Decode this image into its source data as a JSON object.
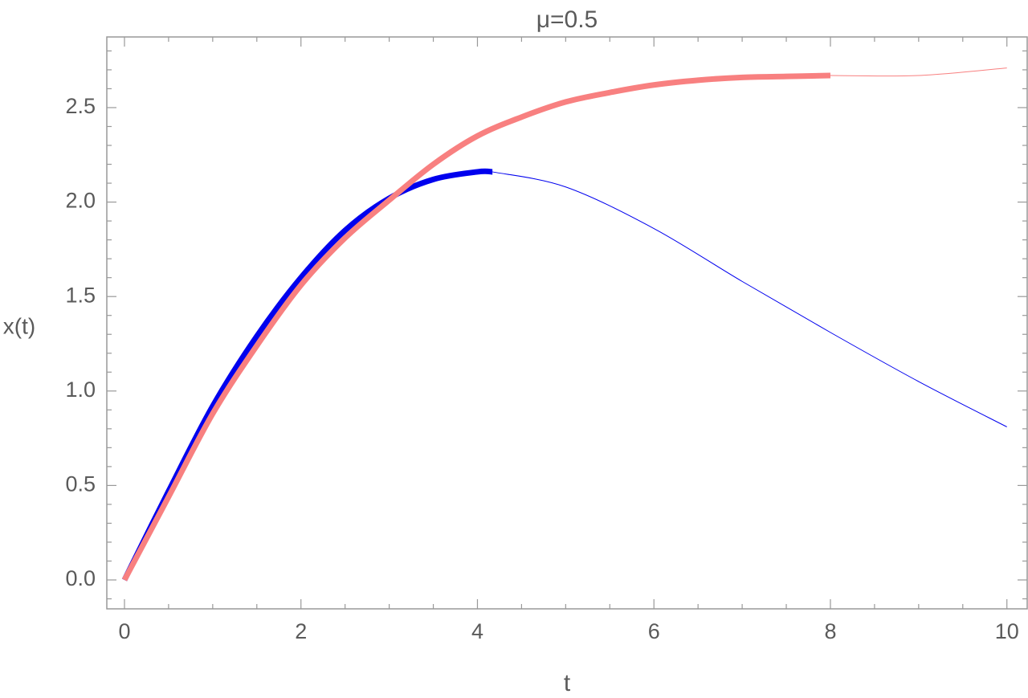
{
  "chart_data": {
    "type": "line",
    "title": "μ=0.5",
    "x_label": "t",
    "y_label": "x(t)",
    "xlim": [
      -0.2,
      10.23
    ],
    "ylim": [
      -0.153,
      2.874
    ],
    "xticks": [
      0,
      2,
      4,
      6,
      8,
      10
    ],
    "yticks": [
      {
        "value": 0,
        "label": "0.0"
      },
      0.5,
      {
        "value": 1,
        "label": "1.0"
      },
      1.5,
      {
        "value": 2,
        "label": "2.0"
      },
      2.5
    ],
    "xminor_ticks": [
      0.5,
      1,
      1.5,
      2.5,
      3,
      3.5,
      4.5,
      5,
      5.5,
      6.5,
      7,
      7.5,
      8.5,
      9,
      9.5
    ],
    "yminor_ticks": [
      -0.1,
      0.1,
      0.2,
      0.3,
      0.4,
      0.6,
      0.7,
      0.8,
      0.9,
      1.1,
      1.2,
      1.3,
      1.4,
      1.6,
      1.7,
      1.8,
      1.9,
      2.1,
      2.2,
      2.3,
      2.4,
      2.6,
      2.7,
      2.8
    ],
    "series": [
      {
        "color": "#0000ee",
        "linewidth": 1,
        "x": [
          4.17,
          5,
          6,
          7,
          8,
          9,
          10
        ],
        "values": [
          2.16,
          2.08,
          1.86,
          1.58,
          1.31,
          1.05,
          0.81
        ]
      },
      {
        "color": "#0000ee",
        "linewidth": 7,
        "x": [
          0,
          0.5,
          1,
          1.5,
          2,
          2.5,
          3,
          3.5,
          4,
          4.17
        ],
        "values": [
          0,
          0.47,
          0.92,
          1.29,
          1.6,
          1.85,
          2.02,
          2.12,
          2.16,
          2.16
        ]
      },
      {
        "color": "#f88080",
        "linewidth": 1,
        "x": [
          8,
          9,
          10
        ],
        "values": [
          2.67,
          2.67,
          2.71
        ]
      },
      {
        "color": "#f88080",
        "linewidth": 7,
        "x": [
          0,
          0.5,
          1,
          1.5,
          2,
          2.5,
          3,
          3.5,
          4,
          4.5,
          5,
          5.5,
          6,
          6.5,
          7,
          7.5,
          8
        ],
        "values": [
          0,
          0.44,
          0.88,
          1.24,
          1.56,
          1.81,
          2.01,
          2.2,
          2.35,
          2.45,
          2.53,
          2.58,
          2.62,
          2.645,
          2.66,
          2.665,
          2.67
        ]
      }
    ]
  }
}
